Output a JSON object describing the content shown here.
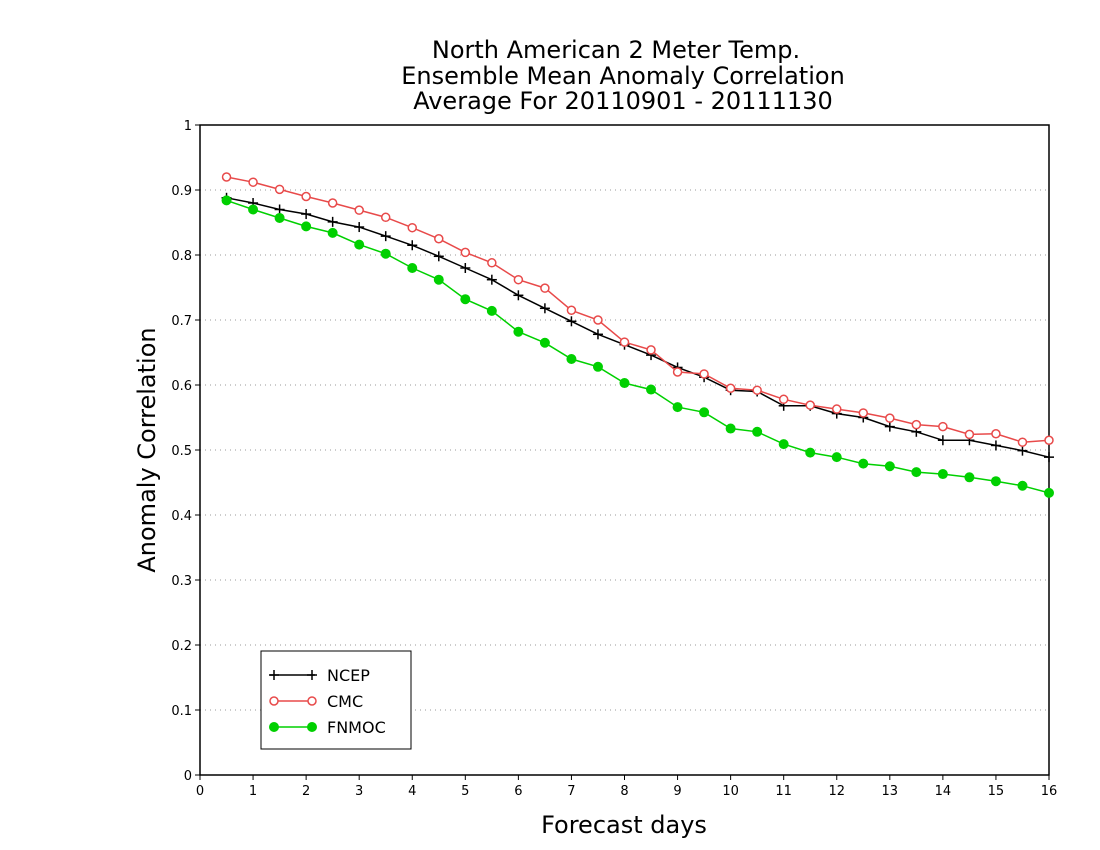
{
  "chart_data": {
    "type": "line",
    "title": [
      "North American 2 Meter Temp.",
      "Ensemble Mean Anomaly Correlation",
      "Average For 20110901 - 20111130"
    ],
    "xlabel": "Forecast days",
    "ylabel": "Anomaly Correlation",
    "xlim": [
      0,
      16
    ],
    "ylim": [
      0,
      1
    ],
    "xticks": [
      "0",
      "1",
      "2",
      "3",
      "4",
      "5",
      "6",
      "7",
      "8",
      "9",
      "10",
      "11",
      "12",
      "13",
      "14",
      "15",
      "16"
    ],
    "yticks": [
      "0",
      "0.1",
      "0.2",
      "0.3",
      "0.4",
      "0.5",
      "0.6",
      "0.7",
      "0.8",
      "0.9",
      "1"
    ],
    "grid": "horizontal dotted",
    "legend_position": "bottom-left",
    "x": [
      0.5,
      1,
      1.5,
      2,
      2.5,
      3,
      3.5,
      4,
      4.5,
      5,
      5.5,
      6,
      6.5,
      7,
      7.5,
      8,
      8.5,
      9,
      9.5,
      10,
      10.5,
      11,
      11.5,
      12,
      12.5,
      13,
      13.5,
      14,
      14.5,
      15,
      15.5,
      16
    ],
    "series": [
      {
        "name": "NCEP",
        "color": "#000000",
        "marker": "plus",
        "values": [
          0.888,
          0.88,
          0.87,
          0.863,
          0.851,
          0.843,
          0.829,
          0.815,
          0.798,
          0.78,
          0.762,
          0.738,
          0.718,
          0.698,
          0.678,
          0.662,
          0.646,
          0.627,
          0.612,
          0.592,
          0.59,
          0.568,
          0.568,
          0.556,
          0.55,
          0.536,
          0.528,
          0.515,
          0.515,
          0.507,
          0.499,
          0.489
        ]
      },
      {
        "name": "CMC",
        "color": "#e84a4a",
        "marker": "open-circle",
        "values": [
          0.92,
          0.912,
          0.901,
          0.89,
          0.88,
          0.869,
          0.858,
          0.842,
          0.825,
          0.804,
          0.788,
          0.762,
          0.749,
          0.715,
          0.7,
          0.666,
          0.654,
          0.62,
          0.617,
          0.595,
          0.592,
          0.578,
          0.569,
          0.563,
          0.557,
          0.549,
          0.539,
          0.536,
          0.524,
          0.525,
          0.512,
          0.515
        ]
      },
      {
        "name": "FNMOC",
        "color": "#00d000",
        "marker": "filled-circle",
        "values": [
          0.884,
          0.87,
          0.857,
          0.844,
          0.834,
          0.816,
          0.802,
          0.78,
          0.762,
          0.732,
          0.714,
          0.682,
          0.665,
          0.64,
          0.628,
          0.603,
          0.593,
          0.566,
          0.558,
          0.533,
          0.528,
          0.509,
          0.496,
          0.489,
          0.479,
          0.475,
          0.466,
          0.463,
          0.458,
          0.452,
          0.445,
          0.434
        ]
      }
    ]
  }
}
